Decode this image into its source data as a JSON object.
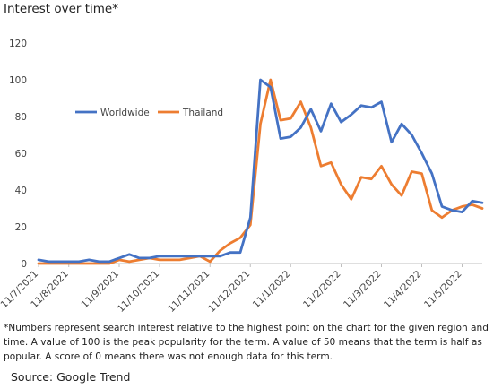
{
  "title": "Interest over time*",
  "footnote": "*Numbers represent search interest relative to the highest point on the chart for the given region and time. A value of 100 is the peak popularity for the term. A value of 50 means that the term is half as popular.  A score of 0 means there was not enough data for this term.",
  "source": "Source: Google Trend",
  "colors": {
    "Worldwide": "#4472c4",
    "Thailand": "#ed7d31",
    "axis": "#bfbfbf"
  },
  "chart_data": {
    "type": "line",
    "title": "Interest over time*",
    "xlabel": "",
    "ylabel": "",
    "ylim": [
      0,
      120
    ],
    "yticks": [
      0,
      20,
      40,
      60,
      80,
      100,
      120
    ],
    "grid": false,
    "legend_position": "middle-left",
    "x_tick_labels": [
      "11/7/2021",
      "11/8/2021",
      "11/9/2021",
      "11/10/2021",
      "11/11/2021",
      "11/12/2021",
      "11/1/2022",
      "11/2/2022",
      "11/3/2022",
      "11/4/2022",
      "11/5/2022"
    ],
    "x": [
      "2021-07-11",
      "2021-07-18",
      "2021-07-25",
      "2021-08-01",
      "2021-08-08",
      "2021-08-15",
      "2021-08-22",
      "2021-08-29",
      "2021-09-05",
      "2021-09-12",
      "2021-09-19",
      "2021-09-26",
      "2021-10-03",
      "2021-10-10",
      "2021-10-17",
      "2021-10-24",
      "2021-10-31",
      "2021-11-07",
      "2021-11-14",
      "2021-11-21",
      "2021-11-28",
      "2021-12-05",
      "2021-12-12",
      "2021-12-19",
      "2021-12-26",
      "2022-01-02",
      "2022-01-09",
      "2022-01-16",
      "2022-01-23",
      "2022-01-30",
      "2022-02-06",
      "2022-02-13",
      "2022-02-20",
      "2022-02-27",
      "2022-03-06",
      "2022-03-13",
      "2022-03-20",
      "2022-03-27",
      "2022-04-03",
      "2022-04-10",
      "2022-04-17",
      "2022-04-24",
      "2022-05-01",
      "2022-05-08",
      "2022-05-15"
    ],
    "series": [
      {
        "name": "Worldwide",
        "values": [
          2,
          1,
          1,
          1,
          1,
          2,
          1,
          1,
          3,
          5,
          3,
          3,
          4,
          4,
          4,
          4,
          4,
          4,
          4,
          6,
          6,
          25,
          100,
          96,
          68,
          69,
          74,
          84,
          72,
          87,
          77,
          81,
          86,
          85,
          88,
          66,
          76,
          70,
          60,
          49,
          31,
          29,
          28,
          34,
          33
        ]
      },
      {
        "name": "Thailand",
        "values": [
          0,
          0,
          0,
          0,
          0,
          0,
          0,
          0,
          2,
          1,
          2,
          3,
          2,
          2,
          2,
          3,
          4,
          1,
          7,
          11,
          14,
          21,
          76,
          100,
          78,
          79,
          88,
          74,
          53,
          55,
          43,
          35,
          47,
          46,
          53,
          43,
          37,
          50,
          49,
          29,
          25,
          29,
          31,
          32,
          30
        ]
      }
    ]
  }
}
